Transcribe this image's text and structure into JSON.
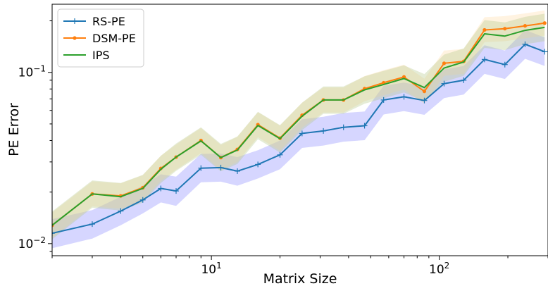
{
  "chart_data": {
    "type": "line",
    "xlabel": "Matrix Size",
    "ylabel": "PE Error",
    "xscale": "log",
    "yscale": "log",
    "xlim": [
      2,
      300
    ],
    "ylim": [
      0.0085,
      0.25
    ],
    "x_ticks": [
      {
        "value": 10,
        "base": "10",
        "exp": "1"
      },
      {
        "value": 100,
        "base": "10",
        "exp": "2"
      }
    ],
    "y_ticks": [
      {
        "value": 0.01,
        "base": "10",
        "exp": "−2"
      },
      {
        "value": 0.1,
        "base": "10",
        "exp": "−1"
      }
    ],
    "grid": false,
    "legend": {
      "placement": "top-left"
    },
    "x": [
      2,
      3,
      4,
      5,
      6,
      7,
      9,
      11,
      13,
      16,
      20,
      25,
      31,
      38,
      47,
      57,
      70,
      86,
      105,
      128,
      158,
      194,
      238,
      290
    ],
    "series": [
      {
        "name": "RS-PE",
        "color": "#1f77b4",
        "marker": "+",
        "values": [
          0.0115,
          0.013,
          0.0155,
          0.018,
          0.021,
          0.0203,
          0.0276,
          0.0278,
          0.0265,
          0.029,
          0.033,
          0.044,
          0.0455,
          0.0478,
          0.0488,
          0.069,
          0.072,
          0.0685,
          0.086,
          0.09,
          0.119,
          0.111,
          0.146,
          0.132
        ],
        "band_color": "#0000ff",
        "band_lower": [
          0.0094,
          0.0107,
          0.0128,
          0.015,
          0.0174,
          0.0166,
          0.0228,
          0.023,
          0.0218,
          0.024,
          0.0272,
          0.0362,
          0.0374,
          0.0394,
          0.0402,
          0.0568,
          0.0594,
          0.0565,
          0.0708,
          0.0742,
          0.098,
          0.0915,
          0.12,
          0.109
        ],
        "band_upper": [
          0.0139,
          0.0157,
          0.0188,
          0.0218,
          0.0254,
          0.0246,
          0.0334,
          0.0336,
          0.032,
          0.0351,
          0.04,
          0.0533,
          0.0551,
          0.0579,
          0.0591,
          0.0836,
          0.0872,
          0.083,
          0.104,
          0.109,
          0.144,
          0.134,
          0.177,
          0.16
        ]
      },
      {
        "name": "DSM-PE",
        "color": "#ff7f0e",
        "marker": ".",
        "values": [
          0.0128,
          0.0195,
          0.019,
          0.0212,
          0.0275,
          0.032,
          0.04,
          0.0318,
          0.0355,
          0.0495,
          0.0413,
          0.0562,
          0.069,
          0.069,
          0.0803,
          0.087,
          0.094,
          0.0775,
          0.113,
          0.116,
          0.177,
          0.18,
          0.187,
          0.194
        ],
        "band_color": "#ffdca8",
        "band_lower": [
          0.0108,
          0.0165,
          0.016,
          0.0179,
          0.0232,
          0.027,
          0.0338,
          0.0268,
          0.03,
          0.0418,
          0.0349,
          0.0475,
          0.0583,
          0.0583,
          0.0678,
          0.0735,
          0.0794,
          0.0655,
          0.0955,
          0.098,
          0.15,
          0.152,
          0.158,
          0.164
        ],
        "band_upper": [
          0.0152,
          0.0231,
          0.0225,
          0.0251,
          0.0326,
          0.0379,
          0.0474,
          0.0377,
          0.042,
          0.0586,
          0.0489,
          0.0666,
          0.0817,
          0.0817,
          0.0951,
          0.103,
          0.111,
          0.0918,
          0.134,
          0.137,
          0.21,
          0.213,
          0.221,
          0.23
        ]
      },
      {
        "name": "IPS",
        "color": "#2ca02c",
        "marker": "",
        "values": [
          0.0128,
          0.0195,
          0.0188,
          0.021,
          0.0272,
          0.032,
          0.0398,
          0.0318,
          0.0352,
          0.049,
          0.041,
          0.0555,
          0.069,
          0.069,
          0.079,
          0.085,
          0.092,
          0.0815,
          0.106,
          0.115,
          0.168,
          0.163,
          0.176,
          0.183
        ],
        "band_color": "#b5c98a",
        "band_lower": [
          0.0106,
          0.0162,
          0.0156,
          0.0174,
          0.0226,
          0.0266,
          0.033,
          0.0264,
          0.0292,
          0.0407,
          0.034,
          0.046,
          0.0573,
          0.0573,
          0.0656,
          0.0706,
          0.0764,
          0.0676,
          0.088,
          0.0955,
          0.139,
          0.135,
          0.146,
          0.152
        ],
        "band_upper": [
          0.0154,
          0.0234,
          0.0226,
          0.0252,
          0.0326,
          0.0384,
          0.0478,
          0.0382,
          0.0422,
          0.0588,
          0.0492,
          0.0666,
          0.0828,
          0.0828,
          0.0948,
          0.102,
          0.11,
          0.0978,
          0.127,
          0.138,
          0.202,
          0.196,
          0.211,
          0.22
        ]
      }
    ]
  }
}
